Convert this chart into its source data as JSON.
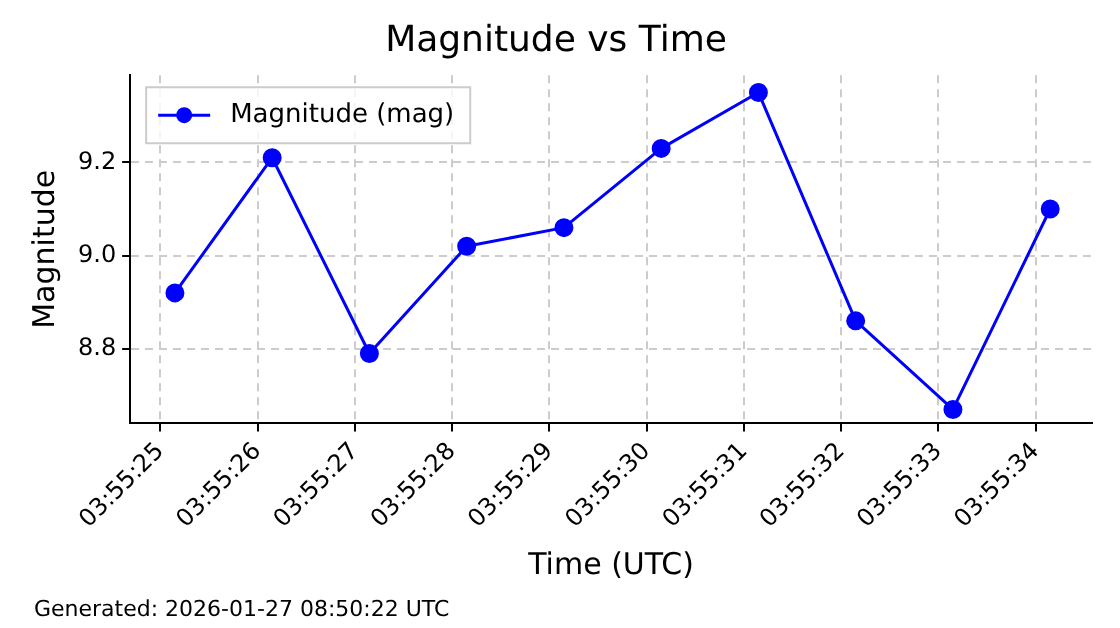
{
  "chart_data": {
    "type": "line",
    "title": "Magnitude vs Time",
    "xlabel": "Time (UTC)",
    "ylabel": "Magnitude",
    "annotations": [
      "Generated: 2026-01-27 08:50:22 UTC"
    ],
    "x": [
      3.9236528,
      3.9239306,
      3.9242083,
      3.9244861,
      3.9247639,
      3.9250417,
      3.9253194,
      3.9255972,
      3.925875,
      3.9261528
    ],
    "series": [
      {
        "name": "Magnitude (mag)",
        "color": "#0000ff",
        "values": [
          8.92,
          9.21,
          8.79,
          9.02,
          9.06,
          9.23,
          9.35,
          8.86,
          8.67,
          9.1
        ]
      }
    ],
    "xlim": [
      3.923525,
      3.9262722
    ],
    "xticks": [
      {
        "value": 3.9236111,
        "label": "03:55:25"
      },
      {
        "value": 3.9238889,
        "label": "03:55:26"
      },
      {
        "value": 3.9241667,
        "label": "03:55:27"
      },
      {
        "value": 3.9244444,
        "label": "03:55:28"
      },
      {
        "value": 3.9247222,
        "label": "03:55:29"
      },
      {
        "value": 3.925,
        "label": "03:55:30"
      },
      {
        "value": 3.9252778,
        "label": "03:55:31"
      },
      {
        "value": 3.9255556,
        "label": "03:55:32"
      },
      {
        "value": 3.9258333,
        "label": "03:55:33"
      },
      {
        "value": 3.9261111,
        "label": "03:55:34"
      }
    ],
    "ylim": [
      8.64,
      9.387
    ],
    "yticks": [
      {
        "value": 8.8,
        "label": "8.8"
      },
      {
        "value": 9.0,
        "label": "9.0"
      },
      {
        "value": 9.2,
        "label": "9.2"
      }
    ],
    "grid": true,
    "legend": "top left",
    "marker": "circle",
    "line_style": "solid"
  }
}
